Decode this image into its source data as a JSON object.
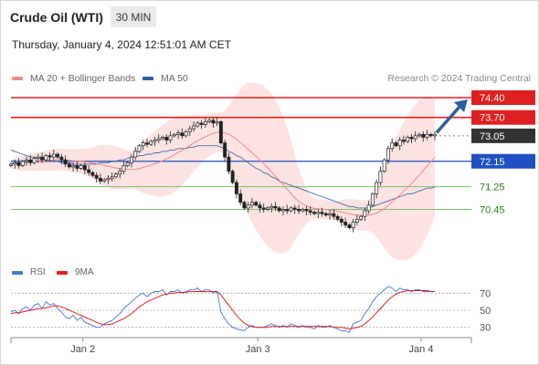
{
  "header": {
    "title": "Crude Oil (WTI)",
    "timeframe": "30 MIN",
    "datetime": "Thursday, January 4, 2024 12:51:01 AM CET"
  },
  "legend": {
    "ma20_label": "MA 20 + Bollinger Bands",
    "ma50_label": "MA 50",
    "credit": "Research © 2024 Trading Central",
    "rsi_label": "RSI",
    "rsi_ma_label": "9MA"
  },
  "colors": {
    "ma20": "#f08a8a",
    "ma50": "#2f5d9e",
    "resistance": "#e02020",
    "pivot": "#1f4fc2",
    "support": "#7cc06a",
    "current": "#333333",
    "rsi": "#4a74d8",
    "rsi_ma": "#e02020",
    "bollinger_fill": "#fddada",
    "arrow": "#2f5d9e"
  },
  "chart_data": [
    {
      "type": "candlestick",
      "x_ticks": [
        "Jan 2",
        "Jan 3",
        "Jan 4"
      ],
      "ylim": [
        69.4,
        74.4
      ],
      "levels": [
        {
          "value": "74.40",
          "kind": "resistance"
        },
        {
          "value": "73.70",
          "kind": "resistance"
        },
        {
          "value": "73.05",
          "kind": "current"
        },
        {
          "value": "72.15",
          "kind": "pivot"
        },
        {
          "value": "71.25",
          "kind": "support"
        },
        {
          "value": "70.45",
          "kind": "support"
        }
      ],
      "close": [
        72.05,
        72.1,
        72.0,
        72.15,
        72.2,
        72.1,
        72.25,
        72.3,
        72.2,
        72.35,
        72.3,
        72.4,
        72.3,
        72.2,
        72.05,
        71.95,
        72.0,
        71.9,
        72.0,
        71.85,
        71.75,
        71.65,
        71.55,
        71.45,
        71.5,
        71.55,
        71.6,
        71.7,
        71.8,
        72.0,
        72.1,
        72.3,
        72.5,
        72.7,
        72.8,
        72.75,
        72.85,
        72.9,
        72.95,
        73.0,
        72.9,
        73.05,
        73.1,
        73.15,
        73.05,
        73.2,
        73.3,
        73.4,
        73.5,
        73.45,
        73.55,
        73.6,
        73.5,
        73.55,
        72.8,
        72.3,
        71.8,
        71.4,
        71.0,
        70.7,
        70.5,
        70.6,
        70.7,
        70.6,
        70.5,
        70.45,
        70.5,
        70.55,
        70.5,
        70.4,
        70.45,
        70.4,
        70.5,
        70.45,
        70.4,
        70.45,
        70.4,
        70.35,
        70.3,
        70.35,
        70.3,
        70.25,
        70.3,
        70.2,
        70.1,
        70.0,
        69.9,
        69.8,
        70.0,
        70.1,
        70.2,
        70.4,
        70.6,
        71.0,
        71.4,
        71.8,
        72.2,
        72.6,
        72.8,
        72.7,
        72.9,
        72.85,
        73.0,
        72.95,
        73.05,
        73.1,
        73.0,
        73.1,
        73.05,
        73.1
      ],
      "ma50": [
        72.55,
        72.5,
        72.45,
        72.4,
        72.35,
        72.3,
        72.3,
        72.25,
        72.25,
        72.2,
        72.2,
        72.15,
        72.15,
        72.1,
        72.1,
        72.1,
        72.05,
        72.05,
        72.05,
        72.05,
        72.05,
        72.05,
        72.05,
        72.1,
        72.1,
        72.1,
        72.15,
        72.15,
        72.2,
        72.2,
        72.25,
        72.3,
        72.3,
        72.35,
        72.35,
        72.4,
        72.4,
        72.45,
        72.45,
        72.5,
        72.5,
        72.55,
        72.55,
        72.6,
        72.6,
        72.6,
        72.65,
        72.65,
        72.7,
        72.7,
        72.7,
        72.7,
        72.7,
        72.7,
        72.65,
        72.6,
        72.5,
        72.45,
        72.35,
        72.3,
        72.2,
        72.1,
        72.0,
        71.9,
        71.85,
        71.75,
        71.7,
        71.6,
        71.55,
        71.45,
        71.4,
        71.35,
        71.3,
        71.25,
        71.2,
        71.15,
        71.1,
        71.05,
        71.0,
        70.95,
        70.9,
        70.85,
        70.8,
        70.75,
        70.7,
        70.65,
        70.6,
        70.55,
        70.55,
        70.5,
        70.5,
        70.5,
        70.5,
        70.55,
        70.6,
        70.65,
        70.7,
        70.75,
        70.8,
        70.85,
        70.9,
        70.95,
        71.0,
        71.0,
        71.05,
        71.1,
        71.15,
        71.2,
        71.2,
        71.25
      ]
    },
    {
      "type": "line",
      "name": "RSI",
      "y_ticks": [
        "70",
        "50",
        "30"
      ],
      "ylim": [
        20,
        80
      ],
      "rsi": [
        48,
        50,
        46,
        52,
        54,
        50,
        56,
        58,
        52,
        60,
        56,
        58,
        52,
        48,
        42,
        40,
        44,
        38,
        42,
        36,
        34,
        32,
        30,
        30,
        34,
        36,
        38,
        42,
        46,
        52,
        56,
        60,
        64,
        68,
        70,
        66,
        70,
        72,
        72,
        74,
        68,
        72,
        72,
        74,
        70,
        72,
        74,
        74,
        76,
        72,
        74,
        74,
        70,
        72,
        48,
        40,
        34,
        30,
        28,
        27,
        26,
        30,
        32,
        30,
        30,
        30,
        32,
        34,
        32,
        30,
        32,
        30,
        34,
        32,
        30,
        32,
        30,
        30,
        28,
        32,
        30,
        30,
        32,
        30,
        28,
        26,
        26,
        24,
        34,
        36,
        38,
        46,
        52,
        60,
        66,
        70,
        74,
        78,
        76,
        72,
        76,
        74,
        74,
        72,
        74,
        74,
        72,
        72,
        72,
        72
      ],
      "rsi_ma": [
        46,
        47,
        47,
        48,
        49,
        50,
        51,
        52,
        52,
        53,
        54,
        55,
        55,
        54,
        52,
        50,
        48,
        46,
        44,
        42,
        40,
        38,
        36,
        34,
        33,
        33,
        34,
        36,
        38,
        40,
        43,
        46,
        50,
        54,
        57,
        60,
        62,
        64,
        66,
        68,
        69,
        70,
        70,
        71,
        71,
        71,
        72,
        72,
        72,
        72,
        72,
        72,
        72,
        72,
        68,
        62,
        56,
        50,
        44,
        39,
        35,
        32,
        31,
        30,
        30,
        30,
        30,
        31,
        31,
        31,
        31,
        31,
        31,
        31,
        31,
        31,
        31,
        31,
        31,
        31,
        31,
        31,
        31,
        30,
        30,
        30,
        29,
        28,
        29,
        30,
        31,
        34,
        38,
        42,
        47,
        52,
        57,
        62,
        66,
        69,
        71,
        72,
        73,
        73,
        73,
        73,
        73,
        73,
        72,
        72
      ]
    }
  ]
}
